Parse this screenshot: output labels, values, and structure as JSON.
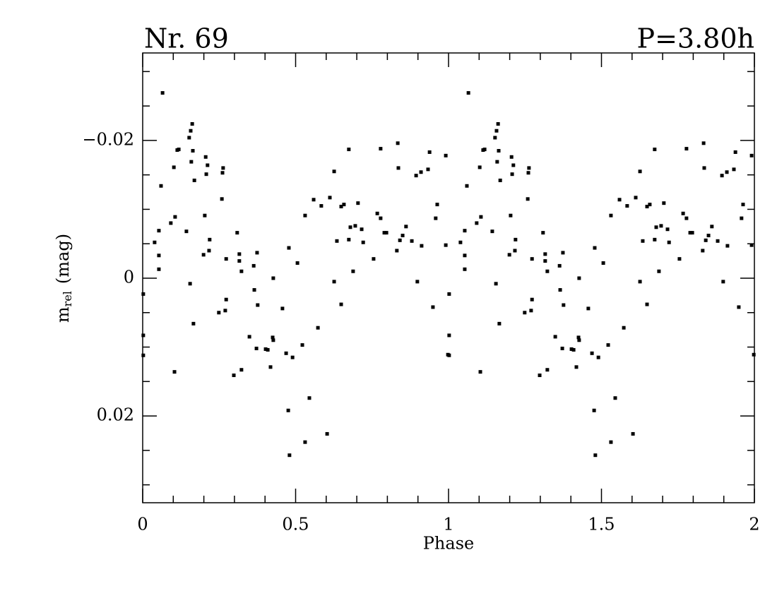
{
  "chart_data": {
    "type": "scatter",
    "title": "Nr. 69",
    "subtitle": "P=3.80h",
    "xlabel": "Phase",
    "ylabel": "m",
    "ylabel_sub": "rel",
    "ylabel_unit": "(mag)",
    "xlim": [
      0,
      2
    ],
    "ylim": [
      -0.0327,
      0.0326
    ],
    "y_inverted": true,
    "xticks": [
      0,
      0.5,
      1,
      1.5,
      2
    ],
    "xticks_minor": [
      0.1,
      0.2,
      0.3,
      0.4,
      0.6,
      0.7,
      0.8,
      0.9,
      1.1,
      1.2,
      1.3,
      1.4,
      1.6,
      1.7,
      1.8,
      1.9
    ],
    "yticks": [
      {
        "value": -0.02,
        "label": "−0.02"
      },
      0,
      0.02
    ],
    "yticks_minor": [
      -0.03,
      -0.025,
      -0.015,
      -0.01,
      -0.005,
      0.005,
      0.01,
      0.015,
      0.025,
      0.03
    ],
    "color": "#000000",
    "x": [
      0.002,
      0.002,
      0.002,
      0.039,
      0.053,
      0.053,
      0.053,
      0.06,
      0.065,
      0.092,
      0.102,
      0.104,
      0.106,
      0.113,
      0.118,
      0.143,
      0.152,
      0.155,
      0.157,
      0.159,
      0.162,
      0.164,
      0.166,
      0.169,
      0.199,
      0.203,
      0.206,
      0.208,
      0.212,
      0.217,
      0.219,
      0.249,
      0.259,
      0.261,
      0.263,
      0.27,
      0.273,
      0.273,
      0.298,
      0.309,
      0.316,
      0.316,
      0.323,
      0.323,
      0.349,
      0.363,
      0.365,
      0.372,
      0.374,
      0.376,
      0.402,
      0.409,
      0.418,
      0.425,
      0.427,
      0.427,
      0.457,
      0.469,
      0.476,
      0.478,
      0.48,
      0.49,
      0.506,
      0.522,
      0.531,
      0.531,
      0.545,
      0.559,
      0.573,
      0.584,
      0.603,
      0.612,
      0.626,
      0.626,
      0.635,
      0.649,
      0.649,
      0.658,
      0.674,
      0.674,
      0.679,
      0.688,
      0.695,
      0.704,
      0.716,
      0.721,
      0.755,
      0.767,
      0.778,
      0.778,
      0.79,
      0.797,
      0.831,
      0.834,
      0.836,
      0.841,
      0.85,
      0.861,
      0.88,
      0.894,
      0.898,
      0.91,
      0.912,
      0.933,
      0.938,
      0.949,
      0.958,
      0.963,
      0.991,
      0.991,
      0.998,
      1.002,
      1.002,
      1.002,
      1.039,
      1.053,
      1.053,
      1.053,
      1.06,
      1.065,
      1.092,
      1.102,
      1.104,
      1.106,
      1.113,
      1.118,
      1.143,
      1.152,
      1.155,
      1.157,
      1.159,
      1.162,
      1.164,
      1.166,
      1.169,
      1.199,
      1.203,
      1.206,
      1.208,
      1.212,
      1.217,
      1.219,
      1.249,
      1.259,
      1.261,
      1.263,
      1.27,
      1.273,
      1.273,
      1.298,
      1.309,
      1.316,
      1.316,
      1.323,
      1.323,
      1.349,
      1.363,
      1.365,
      1.372,
      1.374,
      1.376,
      1.402,
      1.409,
      1.418,
      1.425,
      1.427,
      1.427,
      1.457,
      1.469,
      1.476,
      1.478,
      1.48,
      1.49,
      1.506,
      1.522,
      1.531,
      1.531,
      1.545,
      1.559,
      1.573,
      1.584,
      1.603,
      1.612,
      1.626,
      1.626,
      1.635,
      1.649,
      1.649,
      1.658,
      1.674,
      1.674,
      1.679,
      1.688,
      1.695,
      1.704,
      1.716,
      1.721,
      1.755,
      1.767,
      1.778,
      1.778,
      1.79,
      1.797,
      1.831,
      1.834,
      1.836,
      1.841,
      1.85,
      1.861,
      1.88,
      1.894,
      1.898,
      1.91,
      1.912,
      1.933,
      1.938,
      1.949,
      1.958,
      1.963,
      1.991,
      1.991,
      1.998
    ],
    "values": [
      0.0023,
      0.0083,
      0.0112,
      -0.0052,
      -0.0069,
      -0.0033,
      -0.0013,
      -0.0134,
      -0.0269,
      -0.008,
      -0.0161,
      0.0136,
      -0.0089,
      -0.0186,
      -0.0187,
      -0.0068,
      -0.0204,
      0.0008,
      -0.0214,
      -0.0169,
      -0.0224,
      -0.0185,
      0.0066,
      -0.0142,
      -0.0034,
      -0.0091,
      -0.0176,
      -0.0151,
      -0.0164,
      -0.004,
      -0.0056,
      0.005,
      -0.0115,
      -0.0153,
      -0.016,
      0.0047,
      0.0031,
      -0.0028,
      0.0141,
      -0.0066,
      -0.0035,
      -0.0025,
      0.0133,
      -0.001,
      0.0085,
      -0.0018,
      0.0017,
      0.0102,
      -0.0037,
      0.0039,
      0.0103,
      0.0104,
      0.0129,
      0.0086,
      0.0,
      0.009,
      0.0044,
      0.0109,
      0.0192,
      -0.0044,
      0.0257,
      0.0115,
      -0.0022,
      0.0097,
      0.0238,
      -0.0091,
      0.0174,
      -0.0114,
      0.0072,
      -0.0105,
      0.0226,
      -0.0117,
      0.0005,
      -0.0155,
      -0.0054,
      0.0038,
      -0.0104,
      -0.0107,
      -0.0056,
      -0.0187,
      -0.0074,
      -0.001,
      -0.0076,
      -0.0109,
      -0.0071,
      -0.0052,
      -0.0028,
      -0.0094,
      -0.0087,
      -0.0188,
      -0.0066,
      -0.0066,
      -0.004,
      -0.0196,
      -0.016,
      -0.0055,
      -0.0062,
      -0.0075,
      -0.0054,
      -0.0149,
      0.0005,
      -0.0154,
      -0.0047,
      -0.0158,
      -0.0183,
      0.0042,
      -0.0087,
      -0.0107,
      -0.0178,
      -0.0048,
      0.0111,
      0.0023,
      0.0083,
      0.0112,
      -0.0052,
      -0.0069,
      -0.0033,
      -0.0013,
      -0.0134,
      -0.0269,
      -0.008,
      -0.0161,
      0.0136,
      -0.0089,
      -0.0186,
      -0.0187,
      -0.0068,
      -0.0204,
      0.0008,
      -0.0214,
      -0.0169,
      -0.0224,
      -0.0185,
      0.0066,
      -0.0142,
      -0.0034,
      -0.0091,
      -0.0176,
      -0.0151,
      -0.0164,
      -0.004,
      -0.0056,
      0.005,
      -0.0115,
      -0.0153,
      -0.016,
      0.0047,
      0.0031,
      -0.0028,
      0.0141,
      -0.0066,
      -0.0035,
      -0.0025,
      0.0133,
      -0.001,
      0.0085,
      -0.0018,
      0.0017,
      0.0102,
      -0.0037,
      0.0039,
      0.0103,
      0.0104,
      0.0129,
      0.0086,
      0.0,
      0.009,
      0.0044,
      0.0109,
      0.0192,
      -0.0044,
      0.0257,
      0.0115,
      -0.0022,
      0.0097,
      0.0238,
      -0.0091,
      0.0174,
      -0.0114,
      0.0072,
      -0.0105,
      0.0226,
      -0.0117,
      0.0005,
      -0.0155,
      -0.0054,
      0.0038,
      -0.0104,
      -0.0107,
      -0.0056,
      -0.0187,
      -0.0074,
      -0.001,
      -0.0076,
      -0.0109,
      -0.0071,
      -0.0052,
      -0.0028,
      -0.0094,
      -0.0087,
      -0.0188,
      -0.0066,
      -0.0066,
      -0.004,
      -0.0196,
      -0.016,
      -0.0055,
      -0.0062,
      -0.0075,
      -0.0054,
      -0.0149,
      0.0005,
      -0.0154,
      -0.0047,
      -0.0158,
      -0.0183,
      0.0042,
      -0.0087,
      -0.0107,
      -0.0178,
      -0.0048,
      0.0111
    ]
  }
}
